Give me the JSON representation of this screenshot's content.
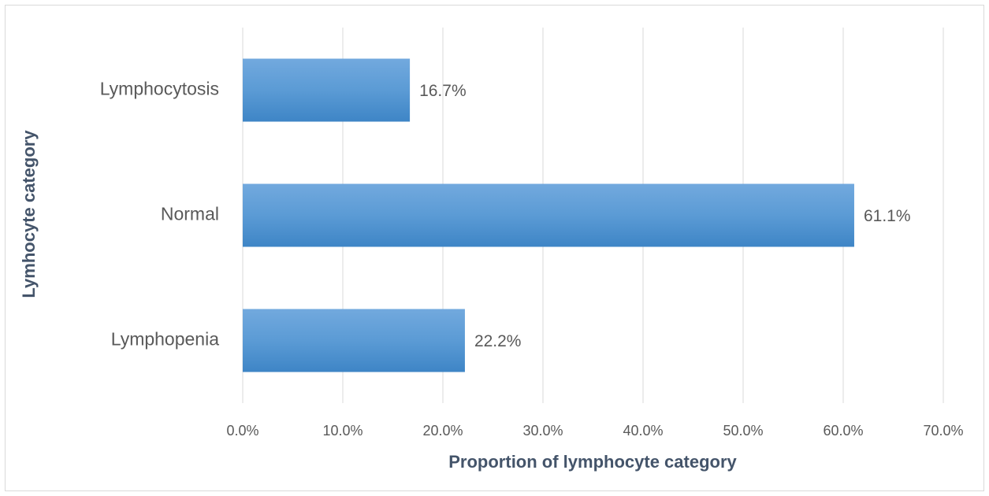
{
  "chart_data": {
    "type": "bar",
    "orientation": "horizontal",
    "categories": [
      "Lymphocytosis",
      "Normal",
      "Lymphopenia"
    ],
    "values": [
      16.7,
      61.1,
      22.2
    ],
    "value_labels": [
      "16.7%",
      "61.1%",
      "22.2%"
    ],
    "color": "#5b9bd5",
    "xlabel": "Proportion of lymphocyte category",
    "ylabel": "Lymhocyte category",
    "xlim": [
      0,
      70
    ],
    "xticks": [
      {
        "value": 0,
        "label": "0.0%"
      },
      {
        "value": 10,
        "label": "10.0%"
      },
      {
        "value": 20,
        "label": "20.0%"
      },
      {
        "value": 30,
        "label": "30.0%"
      },
      {
        "value": 40,
        "label": "40.0%"
      },
      {
        "value": 50,
        "label": "50.0%"
      },
      {
        "value": 60,
        "label": "60.0%"
      },
      {
        "value": 70,
        "label": "70.0%"
      }
    ],
    "grid": true
  }
}
